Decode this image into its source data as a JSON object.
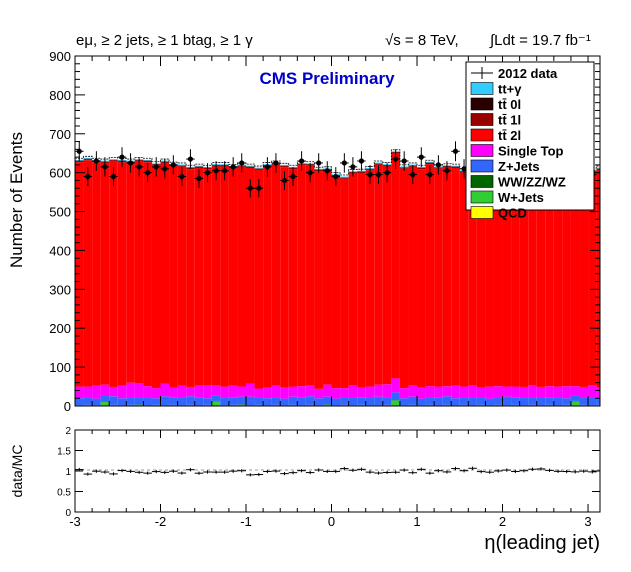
{
  "header": {
    "selection": "eμ, ≥ 2 jets, ≥ 1 btag, ≥ 1 γ",
    "energy": "√s = 8 TeV,",
    "lumi": "∫Ldt = 19.7 fb⁻¹",
    "experiment": "CMS Preliminary"
  },
  "colors": {
    "ttgamma": "#33ccff",
    "tt0l": "#2a0000",
    "tt1l": "#990000",
    "tt2l": "#ff0000",
    "singletop": "#ff00ff",
    "zjets": "#3366ff",
    "diboson": "#006600",
    "wjets": "#33cc33",
    "qcd": "#ffff00",
    "data": "#000000",
    "cms_text": "#0000cc"
  },
  "chart_data": [
    {
      "type": "bar",
      "stacked": true,
      "xlabel": "η(leading jet)",
      "ylabel": "Number of Events",
      "xlim": [
        -3,
        3.14
      ],
      "ylim": [
        0,
        900
      ],
      "yticks": [
        0,
        100,
        200,
        300,
        400,
        500,
        600,
        700,
        800,
        900
      ],
      "xticks": [
        -3,
        -2,
        -1,
        0,
        1,
        2,
        3
      ],
      "legend_position": "top-right",
      "bin_width": 0.1,
      "x_start": -3.0,
      "series": [
        {
          "name": "QCD",
          "key": "qcd",
          "values": [
            0,
            0,
            0,
            0,
            0,
            0,
            0,
            0,
            0,
            0,
            0,
            0,
            0,
            0,
            0,
            0,
            0,
            0,
            0,
            0,
            0,
            0,
            0,
            0,
            0,
            0,
            0,
            0,
            0,
            0,
            0,
            0,
            0,
            0,
            0,
            0,
            0,
            0,
            0,
            0,
            0,
            0,
            0,
            0,
            0,
            0,
            0,
            0,
            0,
            0,
            0,
            0,
            0,
            0,
            0,
            0,
            0,
            0,
            0,
            0,
            0,
            0
          ]
        },
        {
          "name": "W+Jets",
          "key": "wjets",
          "values": [
            1,
            2,
            1,
            10,
            2,
            1,
            2,
            3,
            1,
            2,
            1,
            2,
            1,
            2,
            1,
            2,
            12,
            1,
            2,
            3,
            1,
            2,
            1,
            2,
            1,
            2,
            1,
            2,
            1,
            3,
            1,
            2,
            1,
            2,
            1,
            1,
            2,
            14,
            1,
            2,
            1,
            2,
            1,
            2,
            1,
            2,
            1,
            2,
            1,
            2,
            1,
            2,
            1,
            2,
            1,
            2,
            1,
            2,
            12,
            2,
            1,
            2
          ]
        },
        {
          "name": "WW/ZZ/WZ",
          "key": "diboson",
          "values": [
            1,
            1,
            1,
            1,
            1,
            1,
            1,
            1,
            1,
            1,
            1,
            1,
            1,
            1,
            1,
            1,
            1,
            1,
            1,
            1,
            1,
            1,
            1,
            1,
            1,
            1,
            1,
            1,
            1,
            1,
            1,
            1,
            1,
            1,
            1,
            1,
            1,
            1,
            1,
            1,
            1,
            1,
            1,
            1,
            1,
            1,
            1,
            1,
            1,
            1,
            1,
            1,
            1,
            1,
            1,
            1,
            1,
            1,
            1,
            1,
            1,
            1
          ]
        },
        {
          "name": "Z+Jets",
          "key": "zjets",
          "values": [
            18,
            20,
            17,
            16,
            22,
            18,
            20,
            19,
            21,
            17,
            23,
            18,
            20,
            22,
            19,
            17,
            15,
            21,
            18,
            20,
            22,
            19,
            18,
            20,
            17,
            21,
            19,
            22,
            18,
            20,
            17,
            19,
            21,
            18,
            20,
            22,
            19,
            20,
            18,
            21,
            17,
            20,
            19,
            22,
            18,
            20,
            21,
            19,
            17,
            20,
            22,
            18,
            20,
            19,
            21,
            18,
            20,
            17,
            15,
            19,
            21,
            18
          ]
        },
        {
          "name": "Single Top",
          "key": "singletop",
          "values": [
            30,
            27,
            33,
            28,
            24,
            32,
            37,
            36,
            28,
            26,
            32,
            26,
            30,
            24,
            33,
            34,
            25,
            27,
            31,
            26,
            33,
            23,
            27,
            31,
            28,
            26,
            30,
            29,
            24,
            31,
            27,
            24,
            30,
            26,
            28,
            31,
            34,
            36,
            26,
            29,
            28,
            28,
            29,
            26,
            32,
            27,
            30,
            25,
            31,
            28,
            26,
            29,
            27,
            31,
            26,
            30,
            28,
            31,
            23,
            27,
            30,
            26
          ]
        },
        {
          "name": "tt̄ 2l",
          "key": "tt2l",
          "values": [
            577,
            582,
            575,
            570,
            580,
            575,
            565,
            570,
            576,
            572,
            568,
            570,
            563,
            560,
            558,
            555,
            563,
            566,
            559,
            565,
            555,
            562,
            569,
            566,
            567,
            559,
            568,
            564,
            560,
            550,
            544,
            538,
            545,
            552,
            556,
            565,
            560,
            578,
            564,
            562,
            562,
            571,
            560,
            562,
            560,
            550,
            560,
            566,
            567,
            562,
            565,
            561,
            561,
            564,
            554,
            549,
            559,
            556,
            561,
            547,
            549,
            560
          ]
        },
        {
          "name": "tt̄ 1l",
          "key": "tt1l",
          "values": [
            3,
            3,
            3,
            3,
            3,
            3,
            3,
            3,
            3,
            3,
            3,
            3,
            3,
            3,
            3,
            3,
            3,
            3,
            3,
            3,
            3,
            3,
            3,
            3,
            3,
            3,
            3,
            3,
            3,
            3,
            3,
            3,
            3,
            3,
            3,
            3,
            3,
            3,
            3,
            3,
            3,
            3,
            3,
            3,
            3,
            3,
            3,
            3,
            3,
            3,
            3,
            3,
            3,
            3,
            3,
            3,
            3,
            3,
            3,
            3,
            3,
            3
          ]
        },
        {
          "name": "tt̄ 0l",
          "key": "tt0l",
          "values": [
            1,
            1,
            1,
            1,
            1,
            1,
            1,
            1,
            1,
            1,
            1,
            1,
            1,
            1,
            1,
            1,
            1,
            1,
            1,
            1,
            1,
            1,
            1,
            1,
            1,
            1,
            1,
            1,
            1,
            1,
            1,
            1,
            1,
            1,
            1,
            1,
            1,
            1,
            1,
            1,
            1,
            1,
            1,
            1,
            1,
            1,
            1,
            1,
            1,
            1,
            1,
            1,
            1,
            1,
            1,
            1,
            1,
            1,
            1,
            1,
            1,
            1
          ]
        },
        {
          "name": "tt+γ",
          "key": "ttgamma",
          "values": [
            2,
            2,
            2,
            2,
            2,
            2,
            2,
            2,
            2,
            2,
            2,
            2,
            2,
            2,
            2,
            2,
            2,
            2,
            2,
            2,
            2,
            2,
            2,
            2,
            2,
            2,
            2,
            2,
            2,
            2,
            2,
            2,
            2,
            2,
            2,
            2,
            2,
            2,
            2,
            2,
            2,
            2,
            2,
            2,
            2,
            2,
            2,
            2,
            2,
            2,
            2,
            2,
            2,
            2,
            2,
            2,
            2,
            2,
            2,
            2,
            2,
            2
          ]
        }
      ],
      "data": {
        "name": "2012 data",
        "values": [
          655,
          590,
          630,
          615,
          590,
          640,
          625,
          615,
          600,
          615,
          610,
          620,
          590,
          635,
          585,
          600,
          605,
          605,
          615,
          625,
          560,
          560,
          615,
          625,
          580,
          590,
          630,
          600,
          625,
          605,
          590,
          625,
          615,
          630,
          595,
          595,
          600,
          635,
          630,
          595,
          640,
          595,
          620,
          605,
          655,
          610,
          660,
          610,
          605,
          620,
          635,
          610,
          620,
          650,
          640,
          615,
          610,
          605,
          605,
          600,
          595,
          585
        ]
      }
    },
    {
      "type": "scatter",
      "ylabel": "data/MC",
      "xlim": [
        -3,
        3.14
      ],
      "ylim": [
        0,
        2
      ],
      "yticks": [
        "0",
        "0.5",
        "1",
        "1.5",
        "2"
      ],
      "xticks": [
        "-3",
        "-2",
        "-1",
        "0",
        "1",
        "2",
        "3"
      ]
    }
  ]
}
